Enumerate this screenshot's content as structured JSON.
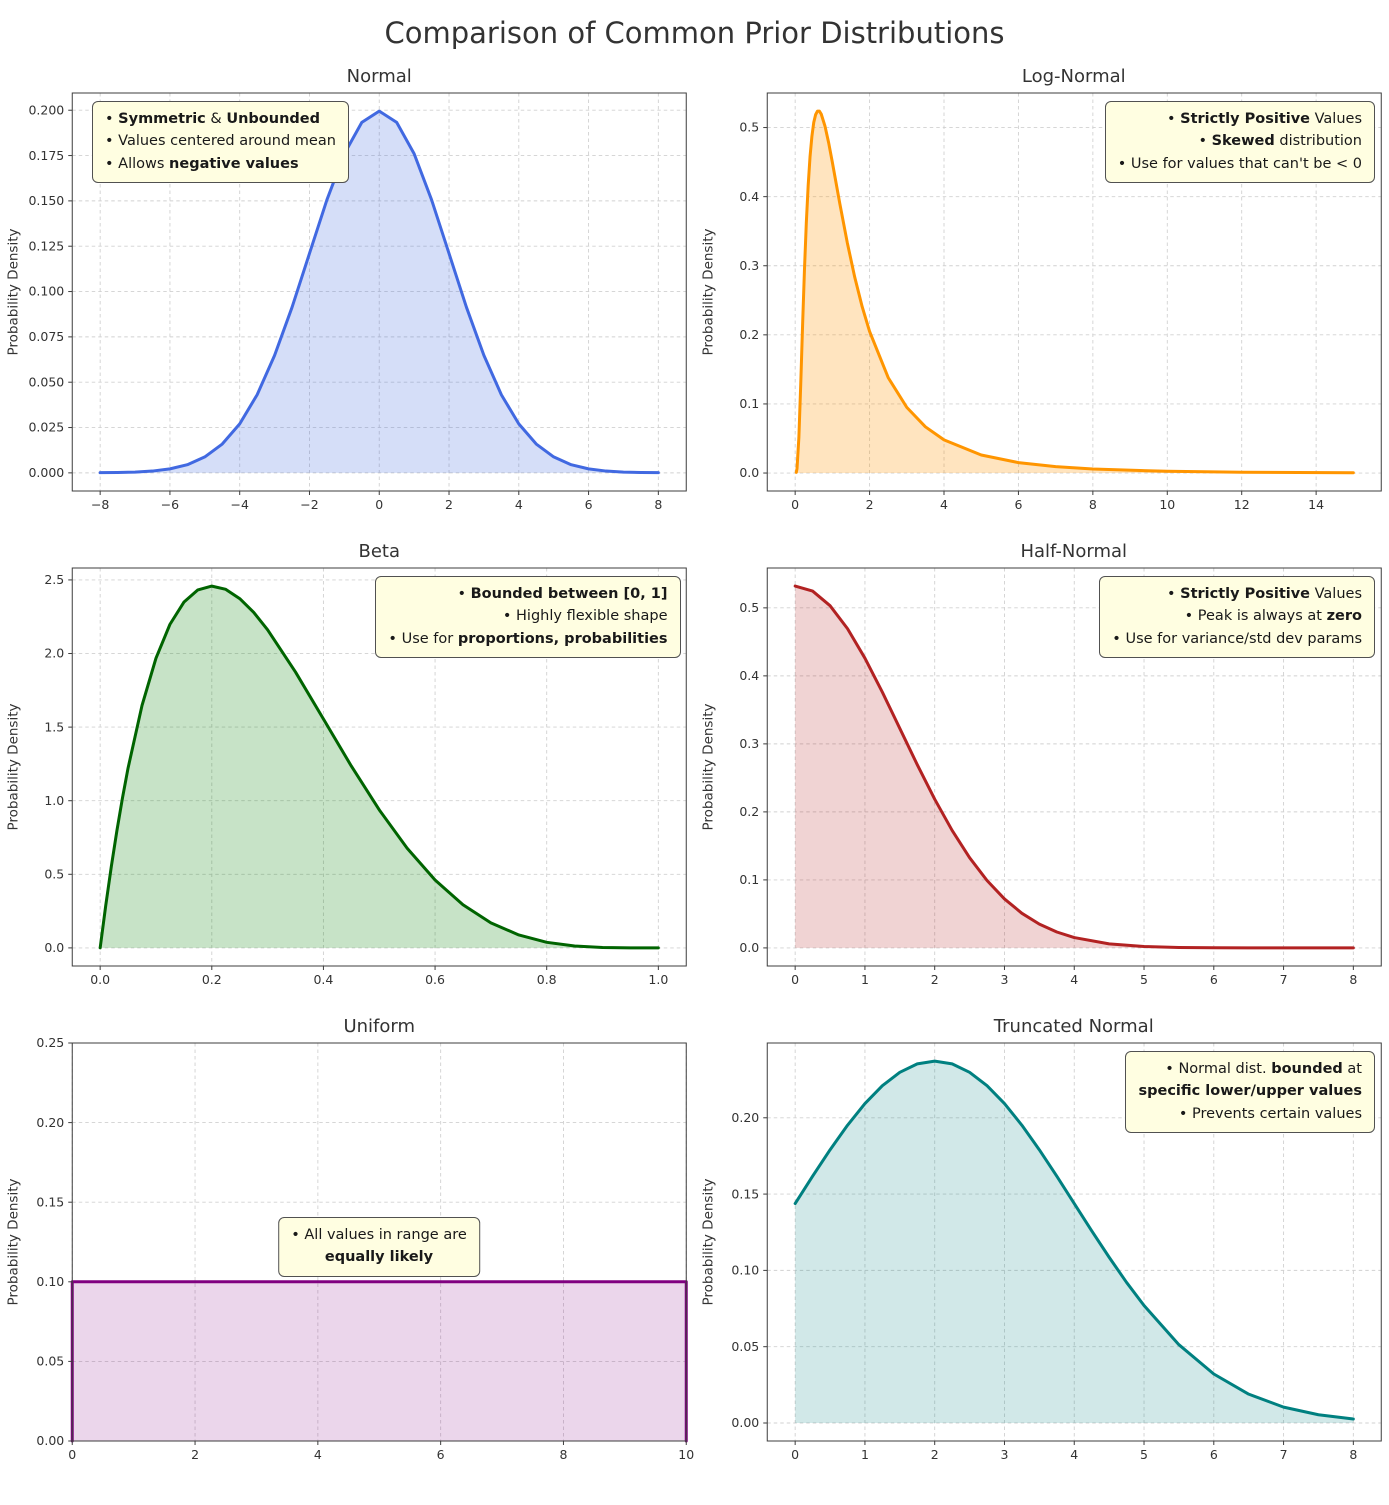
{
  "page_title": "Comparison of Common Prior Distributions",
  "ylabel": "Probability Density",
  "chart_data": [
    {
      "id": "normal",
      "type": "area",
      "title": "Normal",
      "line_color": "#4169e1",
      "fill_color": "rgba(65,105,225,0.22)",
      "xlim": [
        -8.8,
        8.8
      ],
      "ylim": [
        -0.01,
        0.2095
      ],
      "xticks": [
        -8,
        -6,
        -4,
        -2,
        0,
        2,
        4,
        6,
        8
      ],
      "xtick_decimals": 0,
      "yticks": [
        0,
        0.025,
        0.05,
        0.075,
        0.1,
        0.125,
        0.15,
        0.175,
        0.2
      ],
      "ytick_decimals": 3,
      "x": [
        -8,
        -7.5,
        -7,
        -6.5,
        -6,
        -5.5,
        -5,
        -4.5,
        -4,
        -3.5,
        -3,
        -2.5,
        -2,
        -1.5,
        -1,
        -0.5,
        0,
        0.5,
        1,
        1.5,
        2,
        2.5,
        3,
        3.5,
        4,
        4.5,
        5,
        5.5,
        6,
        6.5,
        7,
        7.5,
        8
      ],
      "y": [
        0.0001,
        0.0002,
        0.0004,
        0.001,
        0.0022,
        0.0045,
        0.0088,
        0.0159,
        0.027,
        0.0431,
        0.0648,
        0.0913,
        0.121,
        0.1506,
        0.176,
        0.1933,
        0.1995,
        0.1933,
        0.176,
        0.1506,
        0.121,
        0.0913,
        0.0648,
        0.0431,
        0.027,
        0.0159,
        0.0088,
        0.0045,
        0.0022,
        0.001,
        0.0004,
        0.0002,
        0.0001
      ],
      "annotation": {
        "placement": "top-left",
        "lines": [
          [
            {
              "t": "• "
            },
            {
              "t": "Symmetric",
              "b": true
            },
            {
              "t": " & "
            },
            {
              "t": "Unbounded",
              "b": true
            }
          ],
          [
            {
              "t": "• Values centered around mean"
            }
          ],
          [
            {
              "t": "• Allows "
            },
            {
              "t": "negative values",
              "b": true
            }
          ]
        ]
      }
    },
    {
      "id": "lognormal",
      "type": "area",
      "title": "Log-Normal",
      "line_color": "#ff9500",
      "fill_color": "rgba(255,149,0,0.25)",
      "xlim": [
        -0.75,
        15.75
      ],
      "ylim": [
        -0.026,
        0.55
      ],
      "xticks": [
        0,
        2,
        4,
        6,
        8,
        10,
        12,
        14
      ],
      "xtick_decimals": 0,
      "yticks": [
        0,
        0.1,
        0.2,
        0.3,
        0.4,
        0.5
      ],
      "ytick_decimals": 1,
      "x": [
        0.03,
        0.05,
        0.1,
        0.15,
        0.2,
        0.25,
        0.3,
        0.35,
        0.4,
        0.45,
        0.5,
        0.55,
        0.6,
        0.65,
        0.7,
        0.8,
        0.9,
        1.0,
        1.2,
        1.4,
        1.6,
        1.8,
        2.0,
        2.5,
        3,
        3.5,
        4,
        5,
        6,
        7,
        8,
        10,
        12,
        15
      ],
      "y": [
        0.0009,
        0.0064,
        0.0516,
        0.1289,
        0.2145,
        0.2942,
        0.3623,
        0.4163,
        0.4579,
        0.4873,
        0.5075,
        0.5187,
        0.5238,
        0.5238,
        0.5196,
        0.5024,
        0.478,
        0.4495,
        0.3899,
        0.3336,
        0.2837,
        0.2409,
        0.2049,
        0.1381,
        0.095,
        0.0669,
        0.048,
        0.0261,
        0.0151,
        0.0092,
        0.0058,
        0.0025,
        0.0012,
        0.0005
      ],
      "annotation": {
        "placement": "top-right",
        "lines": [
          [
            {
              "t": "• "
            },
            {
              "t": "Strictly Positive",
              "b": true
            },
            {
              "t": " Values"
            }
          ],
          [
            {
              "t": "• "
            },
            {
              "t": "Skewed",
              "b": true
            },
            {
              "t": " distribution"
            }
          ],
          [
            {
              "t": "• Use for values that can't be < 0"
            }
          ]
        ]
      }
    },
    {
      "id": "beta",
      "type": "area",
      "title": "Beta",
      "line_color": "#006400",
      "fill_color": "rgba(0,128,0,0.22)",
      "xlim": [
        -0.05,
        1.05
      ],
      "ylim": [
        -0.123,
        2.581
      ],
      "xticks": [
        0,
        0.2,
        0.4,
        0.6,
        0.8,
        1.0
      ],
      "xtick_decimals": 1,
      "yticks": [
        0,
        0.5,
        1.0,
        1.5,
        2.0,
        2.5
      ],
      "ytick_decimals": 1,
      "x": [
        0,
        0.01,
        0.02,
        0.03,
        0.04,
        0.05,
        0.075,
        0.1,
        0.125,
        0.15,
        0.175,
        0.2,
        0.225,
        0.25,
        0.275,
        0.3,
        0.35,
        0.4,
        0.45,
        0.5,
        0.55,
        0.6,
        0.65,
        0.7,
        0.75,
        0.8,
        0.85,
        0.9,
        0.95,
        1.0
      ],
      "y": [
        0,
        0.288,
        0.553,
        0.797,
        1.019,
        1.222,
        1.647,
        1.968,
        2.198,
        2.349,
        2.432,
        2.458,
        2.436,
        2.373,
        2.28,
        2.161,
        1.874,
        1.555,
        1.235,
        0.938,
        0.677,
        0.461,
        0.293,
        0.17,
        0.088,
        0.038,
        0.013,
        0.003,
        0.0002,
        0
      ],
      "annotation": {
        "placement": "top-right",
        "lines": [
          [
            {
              "t": "• "
            },
            {
              "t": "Bounded between [0, 1]",
              "b": true
            }
          ],
          [
            {
              "t": "• Highly flexible shape"
            }
          ],
          [
            {
              "t": "• Use for "
            },
            {
              "t": "proportions, probabilities",
              "b": true
            }
          ]
        ]
      }
    },
    {
      "id": "halfnormal",
      "type": "area",
      "title": "Half-Normal",
      "line_color": "#b22222",
      "fill_color": "rgba(178,34,34,0.2)",
      "xlim": [
        -0.4,
        8.4
      ],
      "ylim": [
        -0.0266,
        0.5586
      ],
      "xticks": [
        0,
        1,
        2,
        3,
        4,
        5,
        6,
        7,
        8
      ],
      "xtick_decimals": 0,
      "yticks": [
        0,
        0.1,
        0.2,
        0.3,
        0.4,
        0.5
      ],
      "ytick_decimals": 1,
      "x": [
        0,
        0.25,
        0.5,
        0.75,
        1,
        1.25,
        1.5,
        1.75,
        2,
        2.25,
        2.5,
        2.75,
        3,
        3.25,
        3.5,
        3.75,
        4,
        4.5,
        5,
        5.5,
        6,
        6.5,
        7,
        7.5,
        8
      ],
      "y": [
        0.532,
        0.5247,
        0.5032,
        0.4695,
        0.426,
        0.376,
        0.3227,
        0.2694,
        0.2187,
        0.1727,
        0.1327,
        0.0991,
        0.072,
        0.0509,
        0.035,
        0.0234,
        0.0152,
        0.0059,
        0.0021,
        0.0006,
        0.0002,
        0.0001,
        0,
        0,
        0
      ],
      "annotation": {
        "placement": "top-right",
        "lines": [
          [
            {
              "t": "• "
            },
            {
              "t": "Strictly Positive",
              "b": true
            },
            {
              "t": " Values"
            }
          ],
          [
            {
              "t": "• Peak is always at "
            },
            {
              "t": "zero",
              "b": true
            }
          ],
          [
            {
              "t": "• Use for variance/std dev params"
            }
          ]
        ]
      }
    },
    {
      "id": "uniform",
      "type": "area",
      "title": "Uniform",
      "line_color": "#800080",
      "fill_color": "rgba(128,0,128,0.16)",
      "edge_lines": true,
      "xlim": [
        0,
        10
      ],
      "ylim": [
        0,
        0.25
      ],
      "xticks": [
        0,
        2,
        4,
        6,
        8,
        10
      ],
      "xtick_decimals": 0,
      "yticks": [
        0,
        0.05,
        0.1,
        0.15,
        0.2,
        0.25
      ],
      "ytick_decimals": 2,
      "x": [
        0,
        10
      ],
      "y": [
        0.1,
        0.1
      ],
      "annotation": {
        "placement": "center",
        "lines": [
          [
            {
              "t": "• All values in range are"
            }
          ],
          [
            {
              "t": "equally likely",
              "b": true
            }
          ]
        ]
      }
    },
    {
      "id": "truncnormal",
      "type": "area",
      "title": "Truncated Normal",
      "line_color": "#008080",
      "fill_color": "rgba(0,128,128,0.18)",
      "xlim": [
        -0.4,
        8.4
      ],
      "ylim": [
        -0.0118,
        0.249
      ],
      "xticks": [
        0,
        1,
        2,
        3,
        4,
        5,
        6,
        7,
        8
      ],
      "xtick_decimals": 0,
      "yticks": [
        0,
        0.05,
        0.1,
        0.15,
        0.2
      ],
      "ytick_decimals": 2,
      "x": [
        0,
        0.25,
        0.5,
        0.75,
        1,
        1.25,
        1.5,
        1.75,
        2,
        2.25,
        2.5,
        2.75,
        3,
        3.25,
        3.5,
        3.75,
        4,
        4.25,
        4.5,
        4.75,
        5,
        5.5,
        6,
        6.5,
        7,
        7.5,
        8
      ],
      "y": [
        0.1438,
        0.1617,
        0.179,
        0.1951,
        0.2093,
        0.221,
        0.2298,
        0.2353,
        0.2371,
        0.2353,
        0.2298,
        0.221,
        0.2093,
        0.1951,
        0.179,
        0.1617,
        0.1438,
        0.1259,
        0.1086,
        0.0921,
        0.077,
        0.0513,
        0.0321,
        0.0189,
        0.0104,
        0.0054,
        0.0026
      ],
      "annotation": {
        "placement": "top-right",
        "lines": [
          [
            {
              "t": "• Normal dist. "
            },
            {
              "t": "bounded",
              "b": true
            },
            {
              "t": " at"
            }
          ],
          [
            {
              "t": "specific lower/upper values",
              "b": true
            }
          ],
          [
            {
              "t": "• Prevents certain values"
            }
          ]
        ]
      }
    }
  ]
}
